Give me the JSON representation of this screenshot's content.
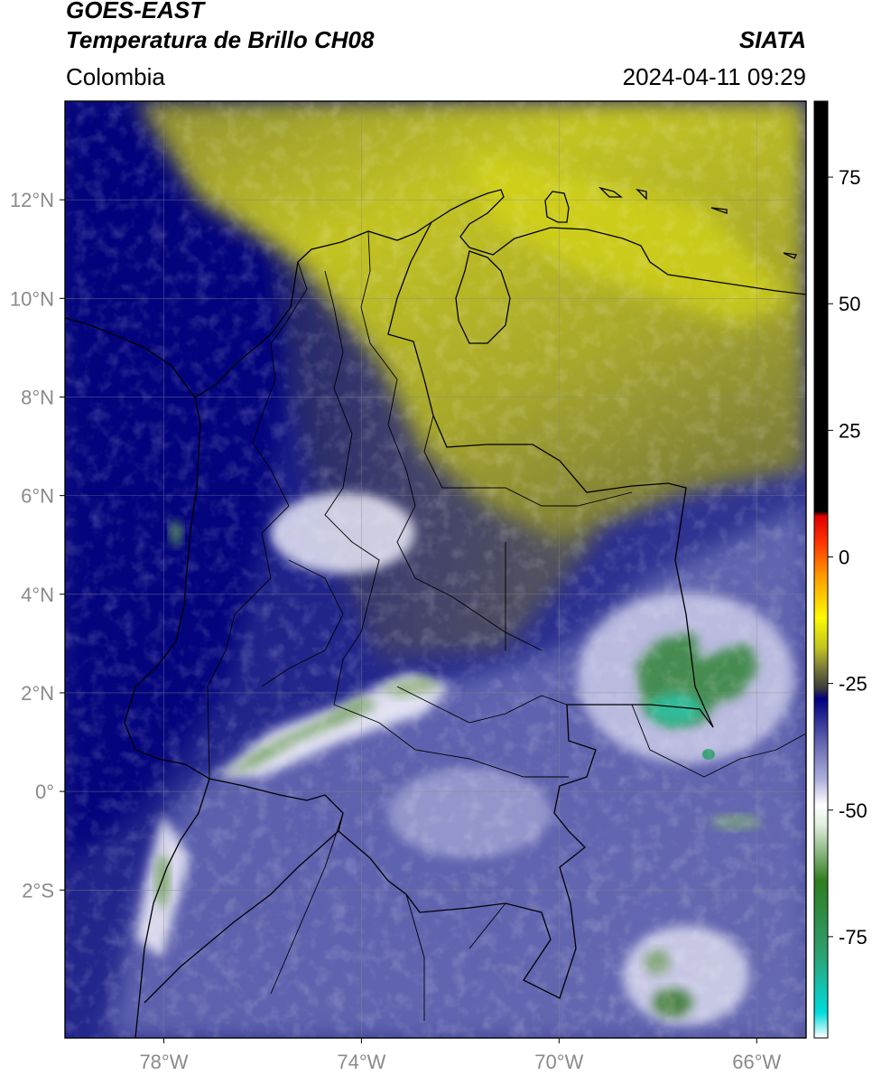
{
  "header": {
    "satellite": "GOES-EAST",
    "product": "Temperatura de Brillo CH08",
    "source": "SIATA",
    "region": "Colombia",
    "timestamp": "2024-04-11 09:29"
  },
  "map": {
    "lon_range": [
      -80,
      -65
    ],
    "lat_range": [
      -5,
      14
    ],
    "lon_ticks": [
      {
        "value": -78,
        "label": "78°W"
      },
      {
        "value": -74,
        "label": "74°W"
      },
      {
        "value": -70,
        "label": "70°W"
      },
      {
        "value": -66,
        "label": "66°W"
      }
    ],
    "lat_ticks": [
      {
        "value": 12,
        "label": "12°N"
      },
      {
        "value": 10,
        "label": "10°N"
      },
      {
        "value": 8,
        "label": "8°N"
      },
      {
        "value": 6,
        "label": "6°N"
      },
      {
        "value": 4,
        "label": "4°N"
      },
      {
        "value": 2,
        "label": "2°N"
      },
      {
        "value": 0,
        "label": "0°"
      },
      {
        "value": -2,
        "label": "2°S"
      }
    ]
  },
  "colorbar": {
    "range": [
      -95,
      90
    ],
    "ticks": [
      {
        "value": 75,
        "label": "75"
      },
      {
        "value": 50,
        "label": "50"
      },
      {
        "value": 25,
        "label": "25"
      },
      {
        "value": 0,
        "label": "0"
      },
      {
        "value": -25,
        "label": "-25"
      },
      {
        "value": -50,
        "label": "-50"
      },
      {
        "value": -75,
        "label": "-75"
      }
    ],
    "stops": [
      {
        "value": -95,
        "color": "#ffffff"
      },
      {
        "value": -90,
        "color": "#00dcdc"
      },
      {
        "value": -78,
        "color": "#2e9e6e"
      },
      {
        "value": -64,
        "color": "#2f7d1f"
      },
      {
        "value": -53,
        "color": "#dfeedd"
      },
      {
        "value": -49,
        "color": "#ffffff"
      },
      {
        "value": -44,
        "color": "#aeb0dc"
      },
      {
        "value": -36,
        "color": "#5b5faa"
      },
      {
        "value": -28,
        "color": "#000080"
      },
      {
        "value": -26,
        "color": "#3a3a3a"
      },
      {
        "value": -22,
        "color": "#7a7a3a"
      },
      {
        "value": -18,
        "color": "#c2c221"
      },
      {
        "value": -12,
        "color": "#fbfb00"
      },
      {
        "value": -4,
        "color": "#ff9e00"
      },
      {
        "value": 3,
        "color": "#ff3200"
      },
      {
        "value": 8,
        "color": "#e00000"
      },
      {
        "value": 9,
        "color": "#000000"
      },
      {
        "value": 90,
        "color": "#000000"
      }
    ]
  }
}
